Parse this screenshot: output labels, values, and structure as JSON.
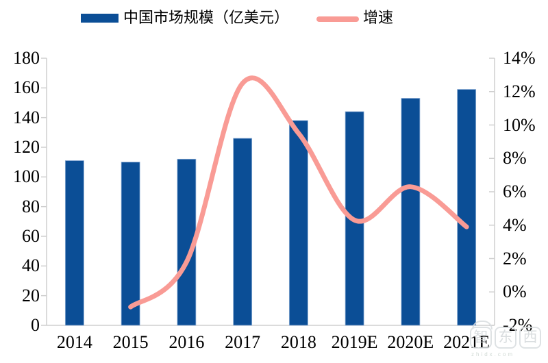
{
  "legend": {
    "bar_label": "中国市场规模（亿美元）",
    "line_label": "增速"
  },
  "colors": {
    "bar": "#0B4E96",
    "bar_edge": "#8FAFD6",
    "line": "#F99B95",
    "axis": "#CFCFCF",
    "text": "#000000"
  },
  "watermark": {
    "logo_text": "智东西",
    "subtext": "zhidx.com"
  },
  "chart_data": {
    "type": "bar",
    "title": "",
    "xlabel": "",
    "ylabel_left": "中国市场规模（亿美元）",
    "ylabel_right": "增速",
    "grid": false,
    "legend_position": "top",
    "smooth_line": true,
    "categories": [
      "2014",
      "2015",
      "2016",
      "2017",
      "2018",
      "2019E",
      "2020E",
      "2021E"
    ],
    "series": [
      {
        "name": "中国市场规模（亿美元）",
        "type": "bar",
        "axis": "left",
        "values": [
          111,
          110,
          112,
          126,
          138,
          144,
          153,
          159
        ]
      },
      {
        "name": "增速",
        "type": "line",
        "axis": "right",
        "first_category": "2015",
        "values_pct": [
          -0.9,
          1.8,
          12.5,
          9.5,
          4.3,
          6.3,
          3.9
        ]
      }
    ],
    "left_axis": {
      "min": 0,
      "max": 180,
      "step": 20,
      "ticks": [
        "0",
        "20",
        "40",
        "60",
        "80",
        "100",
        "120",
        "140",
        "160",
        "180"
      ]
    },
    "right_axis": {
      "min": -2,
      "max": 14,
      "step": 2,
      "ticks": [
        "-2%",
        "0%",
        "2%",
        "4%",
        "6%",
        "8%",
        "10%",
        "12%",
        "14%"
      ]
    }
  }
}
